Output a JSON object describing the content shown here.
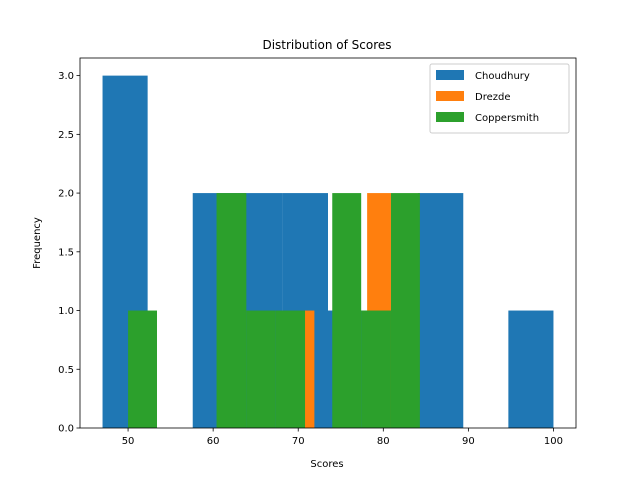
{
  "chart_data": {
    "type": "bar",
    "title": "Distribution of Scores",
    "xlabel": "Scores",
    "ylabel": "Frequency",
    "xlim": [
      44.35,
      102.65
    ],
    "ylim": [
      0,
      3.15
    ],
    "xticks": [
      50,
      60,
      70,
      80,
      90,
      100
    ],
    "yticks": [
      0.0,
      0.5,
      1.0,
      1.5,
      2.0,
      2.5,
      3.0
    ],
    "xtick_labels": [
      "50",
      "60",
      "70",
      "80",
      "90",
      "100"
    ],
    "ytick_labels": [
      "0.0",
      "0.5",
      "1.0",
      "1.5",
      "2.0",
      "2.5",
      "3.0"
    ],
    "legend_position": "top-right",
    "grid": false,
    "series": [
      {
        "name": "Choudhury",
        "color": "#1f77b4",
        "bins": [
          {
            "x0": 47.0,
            "x1": 52.3,
            "count": 3
          },
          {
            "x0": 52.3,
            "x1": 57.6,
            "count": 0
          },
          {
            "x0": 57.6,
            "x1": 62.9,
            "count": 2
          },
          {
            "x0": 62.9,
            "x1": 68.2,
            "count": 2
          },
          {
            "x0": 68.2,
            "x1": 73.5,
            "count": 2
          },
          {
            "x0": 73.5,
            "x1": 78.8,
            "count": 1
          },
          {
            "x0": 78.8,
            "x1": 84.1,
            "count": 1
          },
          {
            "x0": 84.1,
            "x1": 89.4,
            "count": 2
          },
          {
            "x0": 89.4,
            "x1": 94.7,
            "count": 0
          },
          {
            "x0": 94.7,
            "x1": 100.0,
            "count": 1
          }
        ]
      },
      {
        "name": "Drezde",
        "color": "#ff7f0e",
        "bins": [
          {
            "x0": 70.6,
            "x1": 71.9,
            "count": 1
          },
          {
            "x0": 71.9,
            "x1": 78.1,
            "count": 0
          },
          {
            "x0": 78.1,
            "x1": 80.9,
            "count": 2
          }
        ]
      },
      {
        "name": "Coppersmith",
        "color": "#2ca02c",
        "bins": [
          {
            "x0": 50.0,
            "x1": 53.4,
            "count": 1
          },
          {
            "x0": 53.4,
            "x1": 56.9,
            "count": 0
          },
          {
            "x0": 56.9,
            "x1": 60.4,
            "count": 0
          },
          {
            "x0": 60.4,
            "x1": 63.9,
            "count": 2
          },
          {
            "x0": 63.9,
            "x1": 67.3,
            "count": 1
          },
          {
            "x0": 67.3,
            "x1": 70.8,
            "count": 1
          },
          {
            "x0": 70.8,
            "x1": 74.0,
            "count": 0
          },
          {
            "x0": 74.0,
            "x1": 77.4,
            "count": 2
          },
          {
            "x0": 77.4,
            "x1": 80.9,
            "count": 1
          },
          {
            "x0": 80.9,
            "x1": 84.3,
            "count": 2
          }
        ]
      }
    ]
  }
}
